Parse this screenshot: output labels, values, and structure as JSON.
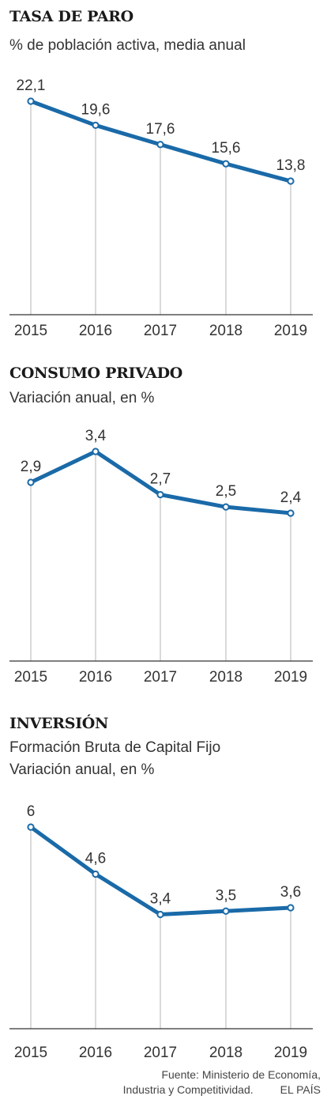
{
  "colors": {
    "line": "#1a6aa8",
    "marker_fill": "#ffffff",
    "grid": "#b5b5b5",
    "axis": "#333333",
    "text": "#333333"
  },
  "charts": [
    {
      "title": "TASA DE PARO",
      "subtitle_lines": [
        "% de población activa, media anual"
      ]
    },
    {
      "title": "CONSUMO PRIVADO",
      "subtitle_lines": [
        "Variación anual, en %"
      ]
    },
    {
      "title": "INVERSIÓN",
      "subtitle_lines": [
        "Formación Bruta de Capital Fijo",
        "Variación anual, en %"
      ]
    }
  ],
  "chart_data": [
    {
      "type": "line",
      "title": "TASA DE PARO",
      "subtitle": "% de población activa, media anual",
      "categories": [
        "2015",
        "2016",
        "2017",
        "2018",
        "2019"
      ],
      "series": [
        {
          "values": [
            22.1,
            19.6,
            17.6,
            15.6,
            13.8
          ]
        }
      ],
      "value_labels": [
        "22,1",
        "19,6",
        "17,6",
        "15,6",
        "13,8"
      ],
      "ylim": [
        0,
        22.1
      ],
      "grid": "vertical"
    },
    {
      "type": "line",
      "title": "CONSUMO PRIVADO",
      "subtitle": "Variación anual, en %",
      "categories": [
        "2015",
        "2016",
        "2017",
        "2018",
        "2019"
      ],
      "series": [
        {
          "values": [
            2.9,
            3.4,
            2.7,
            2.5,
            2.4
          ]
        }
      ],
      "value_labels": [
        "2,9",
        "3,4",
        "2,7",
        "2,5",
        "2,4"
      ],
      "ylim": [
        0,
        3.4
      ],
      "grid": "vertical"
    },
    {
      "type": "line",
      "title": "INVERSIÓN",
      "subtitle": "Formación Bruta de Capital Fijo. Variación anual, en %",
      "categories": [
        "2015",
        "2016",
        "2017",
        "2018",
        "2019"
      ],
      "series": [
        {
          "values": [
            6,
            4.6,
            3.4,
            3.5,
            3.6
          ]
        }
      ],
      "value_labels": [
        "6",
        "4,6",
        "3,4",
        "3,5",
        "3,6"
      ],
      "ylim": [
        0,
        6
      ],
      "grid": "vertical"
    }
  ],
  "footer": {
    "source_line1": "Fuente: Ministerio de Economía,",
    "source_line2": "Industria y Competitividad.",
    "credit": "EL PAÍS"
  }
}
